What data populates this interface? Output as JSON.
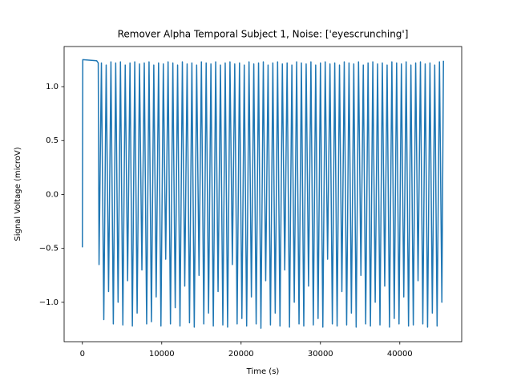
{
  "chart_data": {
    "type": "line",
    "title": "Remover Alpha Temporal Subject 1, Noise: ['eyescrunching']",
    "xlabel": "Time (s)",
    "ylabel": "Signal Voltage (microV)",
    "color": "#1f77b4",
    "xlim": [
      -2300,
      47800
    ],
    "ylim": [
      -1.365,
      1.372
    ],
    "xticks": [
      0,
      10000,
      20000,
      30000,
      40000
    ],
    "yticks": [
      {
        "value": -1,
        "label": "−1.0"
      },
      {
        "value": -0.5,
        "label": "−0.5"
      },
      {
        "value": 0,
        "label": "0.0"
      },
      0.5,
      {
        "value": 1,
        "label": "1.0"
      }
    ],
    "x": [
      0,
      50,
      1800,
      2000,
      2100,
      2400,
      2700,
      3000,
      3300,
      3600,
      3900,
      4200,
      4500,
      4800,
      5100,
      5400,
      5700,
      6000,
      6300,
      6600,
      6900,
      7200,
      7500,
      7800,
      8100,
      8400,
      8700,
      9000,
      9300,
      9600,
      9900,
      10200,
      10500,
      10800,
      11100,
      11400,
      11700,
      12000,
      12300,
      12600,
      12900,
      13200,
      13500,
      13800,
      14100,
      14400,
      14700,
      15000,
      15300,
      15600,
      15900,
      16200,
      16500,
      16800,
      17100,
      17400,
      17700,
      18000,
      18300,
      18600,
      18900,
      19200,
      19500,
      19800,
      20100,
      20400,
      20700,
      21000,
      21300,
      21600,
      21900,
      22200,
      22500,
      22800,
      23100,
      23400,
      23700,
      24000,
      24300,
      24600,
      24900,
      25200,
      25500,
      25800,
      26100,
      26400,
      26700,
      27000,
      27300,
      27600,
      27900,
      28200,
      28500,
      28800,
      29100,
      29400,
      29700,
      30000,
      30300,
      30600,
      30900,
      31200,
      31500,
      31800,
      32100,
      32400,
      32700,
      33000,
      33300,
      33600,
      33900,
      34200,
      34500,
      34800,
      35100,
      35400,
      35700,
      36000,
      36300,
      36600,
      36900,
      37200,
      37500,
      37800,
      38100,
      38400,
      38700,
      39000,
      39300,
      39600,
      39900,
      40200,
      40500,
      40800,
      41100,
      41400,
      41700,
      42000,
      42300,
      42600,
      42900,
      43200,
      43500,
      43800,
      44100,
      44400,
      44700,
      45000,
      45300,
      45500
    ],
    "values": [
      -0.49,
      1.25,
      1.24,
      1.22,
      -0.65,
      1.22,
      -1.16,
      1.2,
      -0.9,
      1.23,
      -1.2,
      1.22,
      -1.0,
      1.23,
      -1.21,
      1.2,
      -0.8,
      1.22,
      -1.22,
      1.23,
      -1.1,
      1.21,
      -0.7,
      1.22,
      -1.2,
      1.23,
      -1.18,
      1.2,
      -0.95,
      1.22,
      -1.22,
      1.21,
      -0.6,
      1.23,
      -1.2,
      1.22,
      -1.05,
      1.2,
      -1.22,
      1.23,
      -0.85,
      1.21,
      -1.19,
      1.22,
      -1.23,
      1.2,
      -0.75,
      1.23,
      -1.2,
      1.22,
      -1.1,
      1.21,
      -1.22,
      1.23,
      -0.9,
      1.2,
      -1.21,
      1.22,
      -1.23,
      1.23,
      -0.65,
      1.21,
      -1.2,
      1.22,
      -1.15,
      1.2,
      -1.22,
      1.23,
      -0.95,
      1.21,
      -1.2,
      1.22,
      -1.24,
      1.23,
      -0.8,
      1.2,
      -1.21,
      1.22,
      -1.1,
      1.23,
      -1.22,
      1.21,
      -0.7,
      1.22,
      -1.23,
      1.2,
      -1.0,
      1.23,
      -1.2,
      1.22,
      -1.22,
      1.21,
      -0.85,
      1.23,
      -1.21,
      1.2,
      -1.15,
      1.22,
      -1.23,
      1.23,
      -0.6,
      1.21,
      -1.2,
      1.22,
      -1.22,
      1.2,
      -0.9,
      1.23,
      -1.21,
      1.22,
      -1.1,
      1.21,
      -1.23,
      1.23,
      -0.75,
      1.2,
      -1.2,
      1.22,
      -1.22,
      1.23,
      -1.0,
      1.21,
      -1.21,
      1.22,
      -0.85,
      1.2,
      -1.23,
      1.23,
      -1.15,
      1.22,
      -1.2,
      1.21,
      -0.95,
      1.23,
      -1.22,
      1.2,
      -1.21,
      1.22,
      -0.8,
      1.23,
      -1.2,
      1.21,
      -1.23,
      1.22,
      -1.1,
      1.2,
      -1.22,
      1.23,
      -1.0,
      1.24
    ]
  }
}
